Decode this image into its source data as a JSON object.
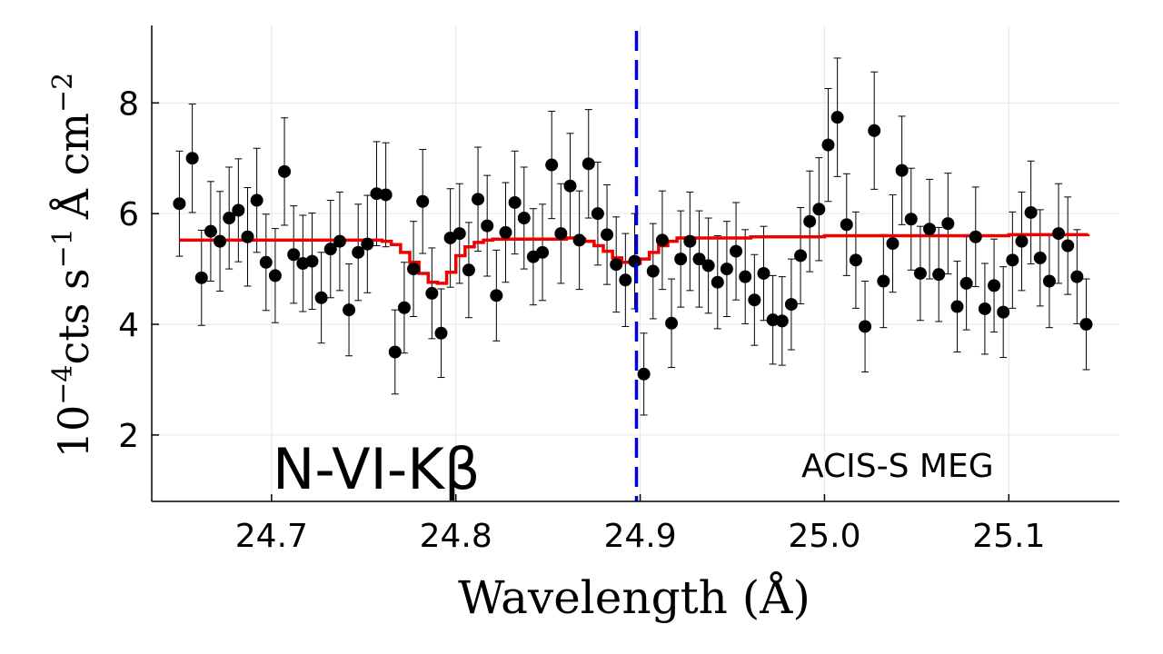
{
  "chart_data": {
    "type": "scatter",
    "xlabel": "Wavelength (Å)",
    "ylabel_parts": {
      "base": "10",
      "exp": "−4",
      "units": "cts s",
      "units_exp": "−1",
      "angstrom": "Å cm",
      "cm_exp": "−2"
    },
    "xlim": [
      24.635,
      25.16
    ],
    "ylim": [
      0.8,
      9.4
    ],
    "xticks": [
      24.7,
      24.8,
      24.9,
      25.0,
      25.1
    ],
    "xtick_labels": [
      "24.7",
      "24.8",
      "24.9",
      "25.0",
      "25.1"
    ],
    "yticks": [
      2,
      4,
      6,
      8
    ],
    "ytick_labels": [
      "2",
      "4",
      "6",
      "8"
    ],
    "grid": true,
    "annotations": {
      "line_label": "N-VI-Kβ",
      "instrument": "ACIS-S MEG"
    },
    "reference_line": {
      "x": 24.898,
      "color": "#0000dd",
      "style": "dashed"
    },
    "colors": {
      "data": "#000000",
      "model": "#ee0000",
      "reference": "#0000dd"
    },
    "series": [
      {
        "type": "scatter-errorbar",
        "x": [
          24.65,
          24.657,
          24.662,
          24.667,
          24.672,
          24.677,
          24.682,
          24.687,
          24.692,
          24.697,
          24.702,
          24.707,
          24.712,
          24.717,
          24.722,
          24.727,
          24.732,
          24.737,
          24.742,
          24.747,
          24.752,
          24.757,
          24.762,
          24.767,
          24.772,
          24.777,
          24.782,
          24.787,
          24.792,
          24.797,
          24.802,
          24.807,
          24.812,
          24.817,
          24.822,
          24.827,
          24.832,
          24.837,
          24.842,
          24.847,
          24.852,
          24.857,
          24.862,
          24.867,
          24.872,
          24.877,
          24.882,
          24.887,
          24.892,
          24.897,
          24.902,
          24.907,
          24.912,
          24.917,
          24.922,
          24.927,
          24.932,
          24.937,
          24.942,
          24.947,
          24.952,
          24.957,
          24.962,
          24.967,
          24.972,
          24.977,
          24.982,
          24.987,
          24.992,
          24.997,
          25.002,
          25.007,
          25.012,
          25.017,
          25.022,
          25.027,
          25.032,
          25.037,
          25.042,
          25.047,
          25.052,
          25.057,
          25.062,
          25.067,
          25.072,
          25.077,
          25.082,
          25.087,
          25.092,
          25.097,
          25.102,
          25.107,
          25.112,
          25.117,
          25.122,
          25.127,
          25.132,
          25.137,
          25.142
        ],
        "y": [
          6.18,
          7.0,
          4.84,
          5.68,
          5.5,
          5.92,
          6.06,
          5.58,
          6.24,
          5.12,
          4.88,
          6.76,
          5.26,
          5.1,
          5.14,
          4.48,
          5.36,
          5.5,
          4.26,
          5.3,
          5.45,
          6.36,
          6.34,
          3.5,
          4.3,
          5.0,
          6.22,
          4.56,
          3.84,
          5.56,
          5.64,
          4.98,
          6.26,
          5.78,
          4.52,
          5.66,
          6.2,
          5.92,
          5.22,
          5.3,
          6.88,
          5.64,
          6.5,
          5.52,
          6.9,
          6.0,
          5.62,
          5.08,
          4.8,
          5.14,
          3.1,
          4.96,
          5.52,
          4.02,
          5.18,
          5.5,
          5.18,
          5.06,
          4.76,
          5.0,
          5.32,
          4.86,
          4.44,
          4.92,
          4.08,
          4.06,
          4.36,
          5.24,
          5.86,
          6.08,
          7.24,
          7.74,
          5.8,
          5.16,
          3.96,
          7.5,
          4.78,
          5.46,
          6.78,
          5.9,
          4.92,
          5.72,
          4.9,
          5.82,
          4.32,
          4.74,
          5.58,
          4.28,
          4.7,
          4.22,
          5.16,
          5.5,
          6.02,
          5.2,
          4.78,
          5.64,
          5.42,
          4.86,
          4.0
        ],
        "err": [
          0.95,
          0.98,
          0.86,
          0.9,
          0.9,
          0.92,
          0.93,
          0.89,
          0.94,
          0.87,
          0.85,
          0.97,
          0.88,
          0.87,
          0.87,
          0.82,
          0.88,
          0.89,
          0.83,
          0.87,
          0.88,
          0.94,
          0.94,
          0.76,
          0.82,
          0.86,
          0.94,
          0.82,
          0.8,
          0.89,
          0.9,
          0.86,
          0.94,
          0.91,
          0.82,
          0.9,
          0.93,
          0.92,
          0.87,
          0.87,
          0.97,
          0.9,
          0.95,
          0.89,
          0.98,
          0.93,
          0.9,
          0.86,
          0.84,
          0.86,
          0.74,
          0.86,
          0.89,
          0.8,
          0.87,
          0.89,
          0.87,
          0.86,
          0.84,
          0.86,
          0.88,
          0.85,
          0.82,
          0.85,
          0.8,
          0.8,
          0.82,
          0.87,
          0.91,
          0.93,
          1.02,
          1.07,
          0.92,
          0.87,
          0.82,
          1.06,
          0.84,
          0.88,
          0.98,
          0.92,
          0.85,
          0.9,
          0.85,
          0.91,
          0.82,
          0.84,
          0.9,
          0.82,
          0.84,
          0.82,
          0.87,
          0.89,
          0.93,
          0.87,
          0.84,
          0.9,
          0.88,
          0.85,
          0.82
        ]
      },
      {
        "type": "step",
        "x": [
          24.65,
          24.755,
          24.76,
          24.765,
          24.77,
          24.775,
          24.78,
          24.785,
          24.79,
          24.795,
          24.8,
          24.805,
          24.81,
          24.815,
          24.82,
          24.86,
          24.865,
          24.87,
          24.875,
          24.88,
          24.885,
          24.89,
          24.895,
          24.9,
          24.905,
          24.91,
          24.915,
          24.92,
          24.96,
          25.0,
          25.1,
          25.143
        ],
        "y": [
          5.52,
          5.52,
          5.5,
          5.44,
          5.3,
          5.12,
          4.92,
          4.76,
          4.74,
          4.94,
          5.24,
          5.4,
          5.48,
          5.52,
          5.54,
          5.56,
          5.54,
          5.5,
          5.42,
          5.32,
          5.2,
          5.12,
          5.1,
          5.18,
          5.3,
          5.42,
          5.5,
          5.56,
          5.58,
          5.6,
          5.62,
          5.63
        ]
      }
    ]
  }
}
